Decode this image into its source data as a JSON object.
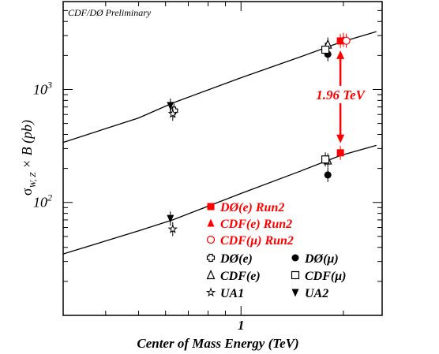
{
  "chart_data": {
    "type": "scatter",
    "note": "CDF/DØ Preliminary",
    "xlabel": "Center of Mass Energy (TeV)",
    "ylabel_parts": {
      "sigma": "σ",
      "sub": "W, Z",
      "rest": " × B (pb)"
    },
    "xscale": "log",
    "yscale": "log",
    "xlim": [
      0.3,
      2.6
    ],
    "ylim": [
      10,
      6000
    ],
    "x_ticks": [
      {
        "value": 1,
        "label": "1"
      }
    ],
    "y_ticks": [
      {
        "value": 100,
        "base": "10",
        "exp": "2"
      },
      {
        "value": 1000,
        "base": "10",
        "exp": "3"
      }
    ],
    "theory_curves": [
      {
        "name": "W",
        "x": [
          0.3,
          0.5,
          0.63,
          1.0,
          1.5,
          1.96,
          2.5
        ],
        "y": [
          340,
          560,
          760,
          1270,
          1950,
          2620,
          3250
        ]
      },
      {
        "name": "Z",
        "x": [
          0.3,
          0.5,
          0.63,
          1.0,
          1.5,
          1.96,
          2.5
        ],
        "y": [
          35,
          56,
          70,
          120,
          190,
          260,
          320
        ]
      }
    ],
    "series": [
      {
        "name": "DØ(e) Run2",
        "marker": "square-filled",
        "color": "#ff0000",
        "points": [
          {
            "x": 1.96,
            "y": 2690
          },
          {
            "x": 1.96,
            "y": 275
          }
        ]
      },
      {
        "name": "CDF(e) Run2",
        "marker": "triangle-filled",
        "color": "#ff0000",
        "points": [
          {
            "x": 2.0,
            "y": 2750
          }
        ]
      },
      {
        "name": "CDF(μ) Run2",
        "marker": "circle-open",
        "color": "#ff0000",
        "points": [
          {
            "x": 2.04,
            "y": 2700
          }
        ]
      },
      {
        "name": "DØ(e)",
        "marker": "cross-open",
        "color": "#000000",
        "points": [
          {
            "x": 0.635,
            "y": 650
          }
        ]
      },
      {
        "name": "DØ(μ)",
        "marker": "circle-filled",
        "color": "#000000",
        "points": [
          {
            "x": 1.8,
            "y": 2050
          },
          {
            "x": 1.8,
            "y": 175
          }
        ]
      },
      {
        "name": "CDF(e)",
        "marker": "triangle-open",
        "color": "#000000",
        "points": [
          {
            "x": 1.8,
            "y": 2500
          },
          {
            "x": 1.8,
            "y": 235
          }
        ]
      },
      {
        "name": "CDF(μ)",
        "marker": "square-open",
        "color": "#000000",
        "points": [
          {
            "x": 1.77,
            "y": 2250
          },
          {
            "x": 1.77,
            "y": 240
          }
        ]
      },
      {
        "name": "UA1",
        "marker": "star",
        "color": "#000000",
        "points": [
          {
            "x": 0.63,
            "y": 610
          },
          {
            "x": 0.63,
            "y": 58
          }
        ]
      },
      {
        "name": "UA2",
        "marker": "triangle-down-filled",
        "color": "#000000",
        "points": [
          {
            "x": 0.62,
            "y": 720
          },
          {
            "x": 0.62,
            "y": 72
          }
        ]
      }
    ],
    "annotation": {
      "text": "1.96 TeV",
      "color": "#ff0000"
    },
    "legend": {
      "placement": "bottom-right",
      "run2_entries": [
        {
          "marker": "square-filled",
          "label": "DØ(e) Run2"
        },
        {
          "marker": "triangle-filled",
          "label": "CDF(e) Run2"
        },
        {
          "marker": "circle-open",
          "label": "CDF(μ) Run2"
        }
      ],
      "grid_entries": [
        {
          "marker": "cross-open",
          "label": "DØ(e)"
        },
        {
          "marker": "circle-filled",
          "label": "DØ(μ)"
        },
        {
          "marker": "triangle-open",
          "label": "CDF(e)"
        },
        {
          "marker": "square-open",
          "label": "CDF(μ)"
        },
        {
          "marker": "star",
          "label": "UA1"
        },
        {
          "marker": "triangle-down-filled",
          "label": "UA2"
        }
      ]
    }
  }
}
